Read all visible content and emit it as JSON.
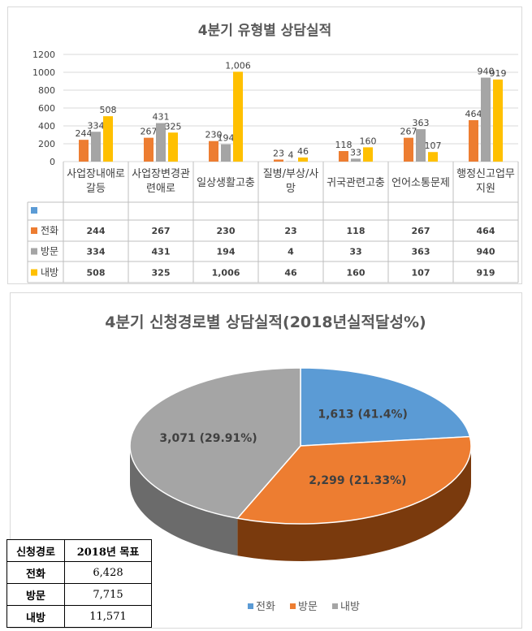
{
  "chart_data": [
    {
      "type": "bar",
      "title": "4분기 유형별 상담실적",
      "categories": [
        [
          "사업장내애로",
          "갈등"
        ],
        [
          "사업장변경관",
          "련애로"
        ],
        [
          "일상생활고충"
        ],
        [
          "질병/부상/사",
          "망"
        ],
        [
          "귀국관련고충"
        ],
        [
          "언어소통문제"
        ],
        [
          "행정신고업무",
          "지원"
        ]
      ],
      "series": [
        {
          "name": "전화",
          "values": [
            244,
            267,
            230,
            23,
            118,
            267,
            464
          ],
          "labels": [
            "244",
            "267",
            "230",
            "23",
            "118",
            "267",
            "464"
          ]
        },
        {
          "name": "방문",
          "values": [
            334,
            431,
            194,
            4,
            33,
            363,
            940
          ],
          "labels": [
            "334",
            "431",
            "194",
            "4",
            "33",
            "363",
            "940"
          ]
        },
        {
          "name": "내방",
          "values": [
            508,
            325,
            1006,
            46,
            160,
            107,
            919
          ],
          "labels": [
            "508",
            "325",
            "1,006",
            "46",
            "160",
            "107",
            "919"
          ]
        }
      ],
      "ylim": [
        0,
        1200
      ],
      "yticks": [
        "0",
        "200",
        "400",
        "600",
        "800",
        "1000",
        "1200"
      ],
      "grid": true,
      "data_table": true
    },
    {
      "type": "pie",
      "title": "4분기 신청경로별 상담실적(2018년실적달성%)",
      "labels": [
        "전화",
        "방문",
        "내방"
      ],
      "values": [
        1613,
        2299,
        3071
      ],
      "data_labels": [
        "1,613 (41.4%)",
        "2,299 (21.33%)",
        "3,071 (29.91%)"
      ],
      "legend_position": "bottom",
      "style": "3d"
    }
  ],
  "colors": {
    "전화": "#5b9bd5",
    "방문": "#ed7d31",
    "내방": "#a5a5a5",
    "bar_전화": "#ed7d31",
    "bar_방문": "#a5a5a5",
    "bar_내방": "#ffc000"
  },
  "goal_table": {
    "headers": [
      "신청경로",
      "2018년 목표"
    ],
    "rows": [
      {
        "label": "전화",
        "value": "6,428"
      },
      {
        "label": "방문",
        "value": "7,715"
      },
      {
        "label": "내방",
        "value": "11,571"
      }
    ]
  }
}
